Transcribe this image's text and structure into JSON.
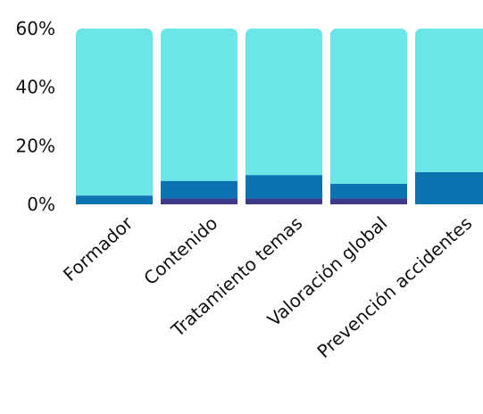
{
  "chart_data": {
    "type": "bar",
    "stacked": true,
    "categories": [
      "Formador",
      "Contenido",
      "Tratamiento temas",
      "Valoración global",
      "Prevención accidentes"
    ],
    "series": [
      {
        "color": "#3d3a8c",
        "values": [
          0,
          2,
          2,
          2,
          0
        ]
      },
      {
        "color": "#0a73b0",
        "values": [
          3,
          6,
          8,
          5,
          11
        ]
      },
      {
        "color": "#6ae6e8",
        "values": [
          57,
          52,
          50,
          53,
          49
        ]
      }
    ],
    "ylim": [
      0,
      60
    ],
    "yticks": [
      {
        "value": 0,
        "label": "0%"
      },
      {
        "value": 20,
        "label": "20%"
      },
      {
        "value": 40,
        "label": "40%"
      },
      {
        "value": 60,
        "label": "60%"
      }
    ],
    "grid": false,
    "legend": "none"
  }
}
